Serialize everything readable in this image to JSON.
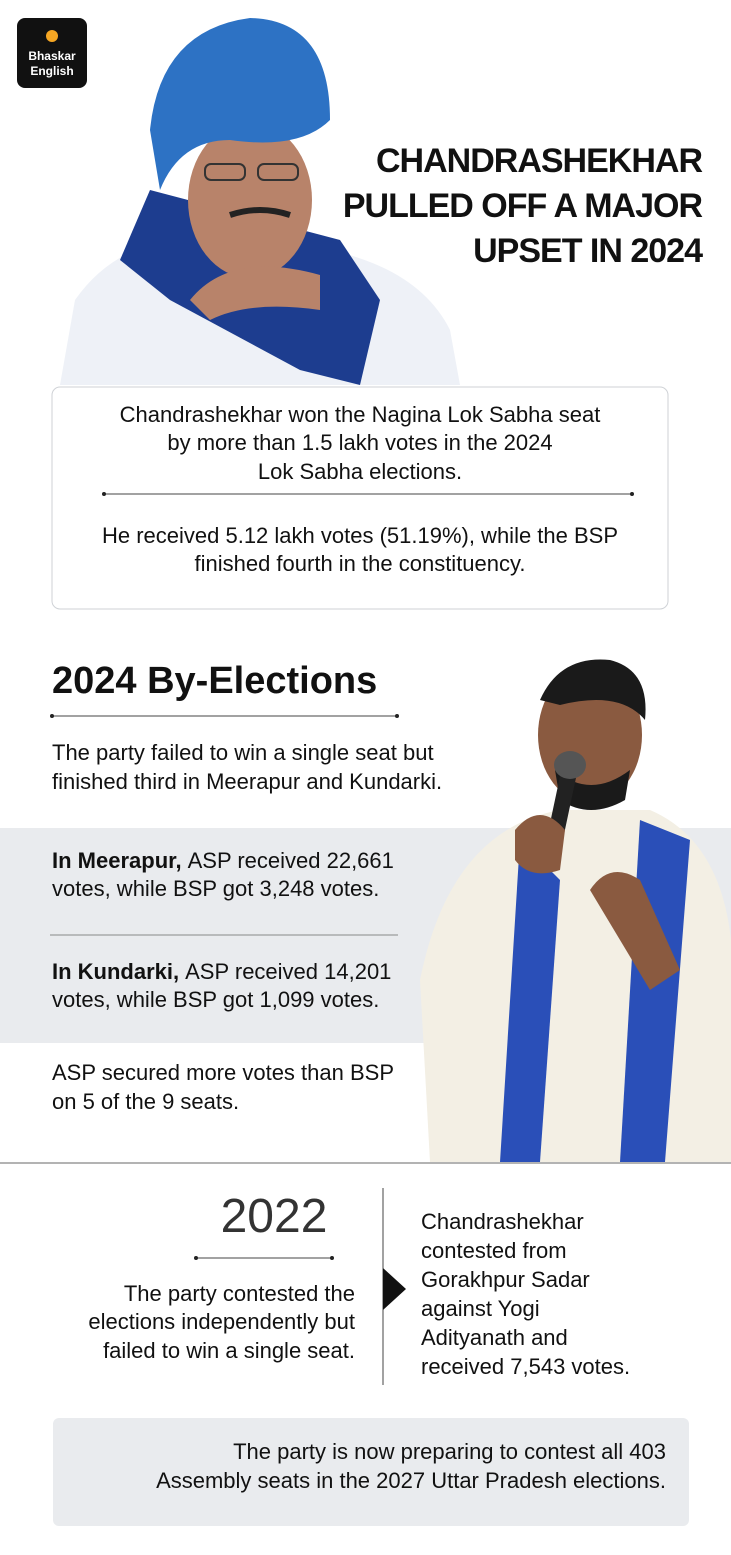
{
  "logo": {
    "lines": [
      "Bhaskar",
      "English"
    ]
  },
  "header": {
    "title_lines": [
      "CHANDRASHEKHAR",
      "PULLED OFF A  MAJOR",
      "UPSET IN 2024"
    ]
  },
  "summary": {
    "first_lines": [
      "Chandrashekhar won the Nagina Lok Sabha seat",
      "by more than 1.5 lakh votes in the 2024",
      "Lok Sabha elections."
    ],
    "second_lines": [
      "He received 5.12 lakh votes (51.19%), while the BSP",
      "finished fourth in the constituency."
    ]
  },
  "by_elections": {
    "heading": "2024 By-Elections",
    "intro_lines": [
      "The party failed to win a single seat but",
      "finished third in Meerapur and Kundarki."
    ],
    "meerapur": {
      "label": "In Meerapur,",
      "lines": [
        "ASP received 22,661",
        "votes, while BSP got 3,248 votes."
      ]
    },
    "kundarki": {
      "label": "In Kundarki,",
      "lines": [
        "ASP received 14,201",
        "votes, while BSP got 1,099 votes."
      ]
    },
    "closing_lines": [
      "ASP secured more votes than BSP",
      "on 5 of the 9 seats."
    ]
  },
  "year_2022": {
    "year": "2022",
    "left_lines": [
      "The party contested the",
      "elections independently but",
      "failed to win a single seat."
    ],
    "right_lines": [
      "Chandrashekhar",
      "contested from",
      "Gorakhpur Sadar",
      "against Yogi",
      "Adityanath and",
      "received 7,543 votes."
    ]
  },
  "footer": {
    "lines": [
      "The party is now preparing to contest all 403",
      "Assembly seats in the 2027 Uttar Pradesh elections."
    ]
  }
}
